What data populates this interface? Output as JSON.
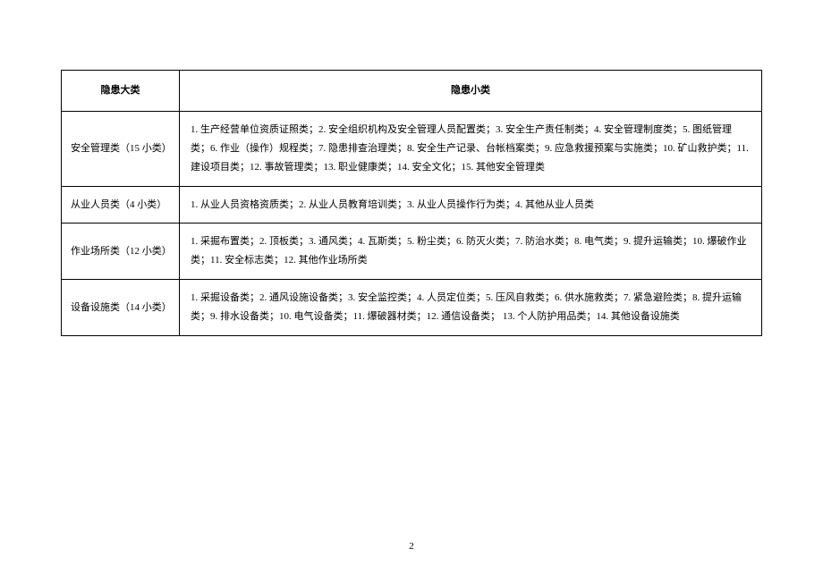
{
  "table": {
    "header_major": "隐患大类",
    "header_minor": "隐患小类",
    "rows": [
      {
        "major": "安全管理类（15 小类）",
        "minor": "1. 生产经营单位资质证照类；2. 安全组织机构及安全管理人员配置类；3. 安全生产责任制类；4. 安全管理制度类；5. 图纸管理类；6. 作业（操作）规程类；7. 隐患排查治理类；8. 安全生产记录、台帐档案类；9. 应急救援预案与实施类；10. 矿山救护类；11. 建设项目类；12. 事故管理类；13. 职业健康类；14. 安全文化；15. 其他安全管理类"
      },
      {
        "major": "从业人员类（4 小类）",
        "minor": "1. 从业人员资格资质类；2. 从业人员教育培训类；3. 从业人员操作行为类；4. 其他从业人员类"
      },
      {
        "major": "作业场所类（12 小类）",
        "minor": "1. 采掘布置类；2. 顶板类；3. 通风类；4. 瓦斯类；5. 粉尘类；6. 防灭火类；7. 防治水类；8. 电气类；9. 提升运输类；10. 爆破作业类；11. 安全标志类；12. 其他作业场所类"
      },
      {
        "major": "设备设施类（14 小类）",
        "minor": "1. 采掘设备类；2. 通风设施设备类；3. 安全监控类；4. 人员定位类；5. 压风自救类；6. 供水施救类；7. 紧急避险类；8. 提升运输类；9. 排水设备类；10. 电气设备类；11. 爆破器材类；12. 通信设备类；  13. 个人防护用品类；14. 其他设备设施类"
      }
    ]
  },
  "page_number": "2"
}
